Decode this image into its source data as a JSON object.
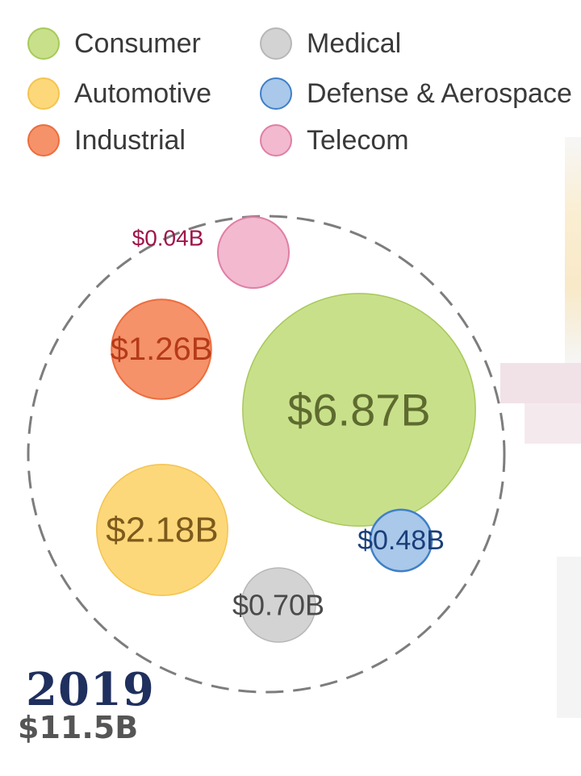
{
  "chart_data": {
    "type": "bubble",
    "year": "2019",
    "total": "$11.5B",
    "legend": [
      {
        "name": "Consumer",
        "fill": "#c9e08b",
        "stroke": "#a7c95a"
      },
      {
        "name": "Automotive",
        "fill": "#fdd87a",
        "stroke": "#f3c451"
      },
      {
        "name": "Industrial",
        "fill": "#f5926a",
        "stroke": "#ec6d3e"
      },
      {
        "name": "Medical",
        "fill": "#d3d3d3",
        "stroke": "#b7b7b7"
      },
      {
        "name": "Defense & Aerospace",
        "fill": "#a9c8ea",
        "stroke": "#3f7fc8"
      },
      {
        "name": "Telecom",
        "fill": "#f2b9cf",
        "stroke": "#e07fa5"
      }
    ],
    "series": [
      {
        "name": "Consumer",
        "value": 6.87,
        "label": "$6.87B",
        "color": "#c9e08b",
        "label_color": "#5e6b2f"
      },
      {
        "name": "Automotive",
        "value": 2.18,
        "label": "$2.18B",
        "color": "#fdd87a",
        "label_color": "#7c5a1c"
      },
      {
        "name": "Industrial",
        "value": 1.26,
        "label": "$1.26B",
        "color": "#f5926a",
        "label_color": "#b53a1a"
      },
      {
        "name": "Medical",
        "value": 0.7,
        "label": "$0.70B",
        "color": "#d3d3d3",
        "label_color": "#4a4a4a"
      },
      {
        "name": "Defense & Aerospace",
        "value": 0.48,
        "label": "$0.48B",
        "color": "#a9c8ea",
        "label_color": "#1a3f7a"
      },
      {
        "name": "Telecom",
        "value": 0.04,
        "label": "$0.04B",
        "color": "#f2b9cf",
        "label_color": "#a0154a"
      }
    ],
    "enclosing_circle": "dashed"
  }
}
